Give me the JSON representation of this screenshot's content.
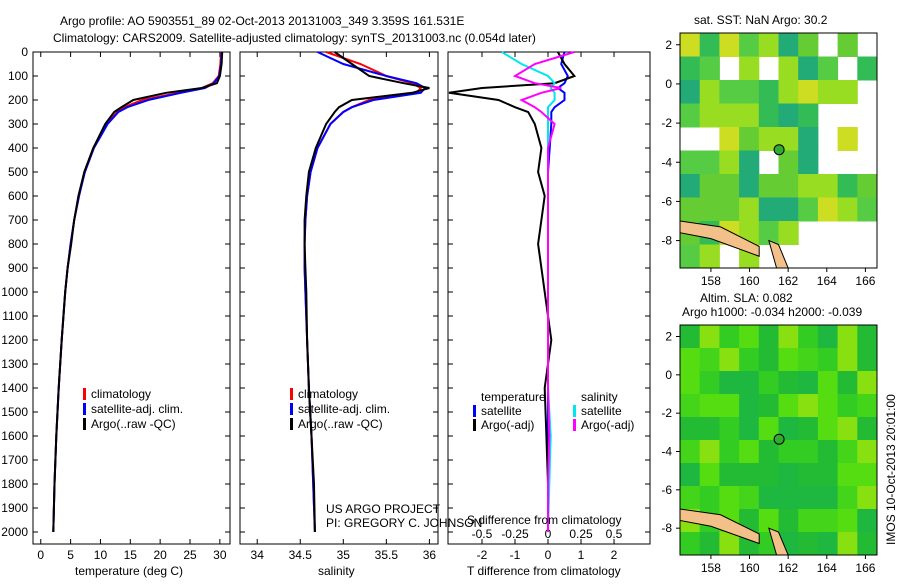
{
  "title_line1": "Argo profile: AO 5903551_89 02-Oct-2013 20131003_349 3.359S 161.531E",
  "title_line2": "Climatology: CARS2009. Satellite-adjusted climatology: synTS_20131003.nc (0.054d later)",
  "colors": {
    "climatology": "#ff0000",
    "satellite": "#0000ff",
    "argo": "#000000",
    "sal_satellite": "#00e5ee",
    "sal_argo": "#ff00ff"
  },
  "credits": {
    "line1": "US ARGO PROJECT",
    "line2": "PI: GREGORY C. JOHNSON"
  },
  "chart_data": [
    {
      "type": "line",
      "id": "temperature",
      "xlabel": "temperature (deg C)",
      "ylabel": "",
      "xlim": [
        -1.3,
        31.7
      ],
      "ylim": [
        2050,
        0
      ],
      "xticks": [
        0,
        5,
        10,
        15,
        20,
        25,
        30
      ],
      "yticks": [
        0,
        100,
        200,
        300,
        400,
        500,
        600,
        700,
        800,
        900,
        1000,
        1100,
        1200,
        1300,
        1400,
        1500,
        1600,
        1700,
        1800,
        1900,
        2000
      ],
      "depth": [
        0,
        50,
        100,
        130,
        150,
        170,
        200,
        230,
        250,
        300,
        400,
        500,
        600,
        700,
        800,
        900,
        1000,
        1200,
        1400,
        1600,
        1800,
        2000
      ],
      "legend": [
        "climatology",
        "satellite-adj. clim.",
        "Argo(..raw -QC)"
      ],
      "series": [
        {
          "name": "climatology",
          "color": "#ff0000",
          "values": [
            30.2,
            30.1,
            29.8,
            28.8,
            27,
            23,
            17,
            14,
            12.8,
            11,
            8.8,
            7.3,
            6.4,
            5.6,
            5,
            4.5,
            4.1,
            3.5,
            3.0,
            2.6,
            2.3,
            2.1
          ]
        },
        {
          "name": "satellite-adj. clim.",
          "color": "#0000ff",
          "values": [
            30.3,
            30.2,
            29.9,
            29,
            27.5,
            23.5,
            18,
            14.5,
            13,
            11.2,
            8.9,
            7.4,
            6.4,
            5.6,
            5,
            4.5,
            4.1,
            3.5,
            3.0,
            2.6,
            2.3,
            2.1
          ]
        },
        {
          "name": "Argo(..raw -QC)",
          "color": "#000000",
          "values": [
            30.4,
            30.3,
            30.0,
            29.5,
            27,
            21,
            15.5,
            13.5,
            12.3,
            10.8,
            8.8,
            7.3,
            6.3,
            5.6,
            5.1,
            4.5,
            4.1,
            3.5,
            3.0,
            2.6,
            2.3,
            2.1
          ]
        }
      ]
    },
    {
      "type": "line",
      "id": "salinity",
      "xlabel": "salinity",
      "xlim": [
        33.8,
        36.1
      ],
      "ylim": [
        2050,
        0
      ],
      "xticks": [
        34,
        34.5,
        35,
        35.5,
        36
      ],
      "depth": [
        0,
        50,
        100,
        130,
        150,
        170,
        200,
        230,
        250,
        300,
        400,
        500,
        600,
        700,
        800,
        900,
        1000,
        1200,
        1400,
        1600,
        1800,
        2000
      ],
      "legend": [
        "climatology",
        "satellite-adj. clim.",
        "Argo(..raw -QC)"
      ],
      "series": [
        {
          "name": "climatology",
          "color": "#ff0000",
          "values": [
            34.8,
            35.2,
            35.5,
            35.8,
            35.9,
            35.85,
            35.3,
            35.1,
            35.0,
            34.85,
            34.7,
            34.62,
            34.58,
            34.56,
            34.55,
            34.55,
            34.56,
            34.58,
            34.6,
            34.63,
            34.65,
            34.67
          ]
        },
        {
          "name": "satellite-adj. clim.",
          "color": "#0000ff",
          "values": [
            34.7,
            35.0,
            35.5,
            35.85,
            35.95,
            35.9,
            35.35,
            35.1,
            35.0,
            34.85,
            34.7,
            34.62,
            34.58,
            34.56,
            34.55,
            34.55,
            34.56,
            34.58,
            34.6,
            34.63,
            34.65,
            34.67
          ]
        },
        {
          "name": "Argo(..raw -QC)",
          "color": "#000000",
          "values": [
            34.9,
            35.1,
            35.3,
            35.7,
            36.0,
            35.8,
            35.1,
            34.95,
            34.9,
            34.8,
            34.68,
            34.6,
            34.57,
            34.55,
            34.55,
            34.56,
            34.57,
            34.58,
            34.6,
            34.63,
            34.66,
            34.67
          ]
        }
      ]
    },
    {
      "type": "line",
      "id": "difference",
      "xlabel": "T difference from climatology",
      "x2label": "S difference from climatology",
      "xlim": [
        -3.03,
        3.09
      ],
      "x2lim": [
        -0.7575,
        0.7725
      ],
      "ylim": [
        2050,
        0
      ],
      "xticks": [
        -2,
        -1,
        0,
        1,
        2
      ],
      "x2ticks": [
        -0.5,
        -0.25,
        0,
        0.25,
        0.5
      ],
      "depth": [
        0,
        50,
        100,
        130,
        150,
        170,
        200,
        230,
        250,
        300,
        400,
        500,
        600,
        700,
        800,
        900,
        1000,
        1200,
        1400,
        1600,
        1800,
        2000
      ],
      "legend_temperature": {
        "heading": "temperature",
        "items": [
          "satellite",
          "Argo(-adj)"
        ]
      },
      "legend_salinity": {
        "heading": "salinity",
        "items": [
          "satellite",
          "Argo(-adj)"
        ]
      },
      "series": [
        {
          "name": "T satellite",
          "axis": "T",
          "color": "#0000ff",
          "values": [
            0.5,
            0.4,
            0.6,
            0.5,
            0.3,
            0.5,
            0.5,
            0.2,
            0.1,
            0.1,
            0.05,
            0,
            0,
            0,
            0,
            0,
            0,
            0,
            0,
            0,
            0,
            0
          ]
        },
        {
          "name": "T Argo(-adj)",
          "axis": "T",
          "color": "#000000",
          "values": [
            0.3,
            0.5,
            0.8,
            0.2,
            -2,
            -3,
            -1.5,
            -1,
            -0.6,
            -0.4,
            -0.2,
            -0.3,
            -0.1,
            -0.2,
            -0.3,
            -0.2,
            -0.1,
            0.1,
            -0.1,
            -0.05,
            0,
            0
          ]
        },
        {
          "name": "S satellite",
          "axis": "S",
          "color": "#00e5ee",
          "values": [
            -0.35,
            -0.2,
            0,
            0.05,
            0.02,
            0.05,
            0.05,
            0,
            0,
            0,
            0,
            0,
            0,
            0,
            0,
            0,
            0,
            0,
            0,
            0.02,
            0.01,
            0
          ]
        },
        {
          "name": "S Argo(-adj)",
          "axis": "S",
          "color": "#ff00ff",
          "values": [
            0.2,
            -0.1,
            -0.25,
            -0.1,
            0.1,
            -0.05,
            -0.2,
            -0.1,
            -0.05,
            0.05,
            0,
            0,
            0,
            0,
            0,
            0,
            0,
            0,
            0,
            0.01,
            0,
            0
          ]
        }
      ]
    },
    {
      "type": "heatmap",
      "id": "sst_map",
      "title": "sat. SST: NaN Argo: 30.2",
      "xlim": [
        156.4,
        166.6
      ],
      "ylim": [
        -9.4,
        2.6
      ],
      "xticks": [
        158,
        160,
        162,
        164,
        166
      ],
      "yticks": [
        2,
        0,
        -2,
        -4,
        -6,
        -8
      ],
      "argo_position": {
        "lon": 161.531,
        "lat": -3.359
      }
    },
    {
      "type": "heatmap",
      "id": "sla_map",
      "title": "Altim. SLA: 0.082",
      "subtitle": "Argo h1000: -0.034 h2000: -0.039",
      "side_label": "IMOS 10-Oct-2013 20:01:00",
      "xlim": [
        156.4,
        166.6
      ],
      "ylim": [
        -9.4,
        2.6
      ],
      "xticks": [
        158,
        160,
        162,
        164,
        166
      ],
      "yticks": [
        2,
        0,
        -2,
        -4,
        -6,
        -8
      ],
      "argo_position": {
        "lon": 161.531,
        "lat": -3.359
      }
    }
  ]
}
